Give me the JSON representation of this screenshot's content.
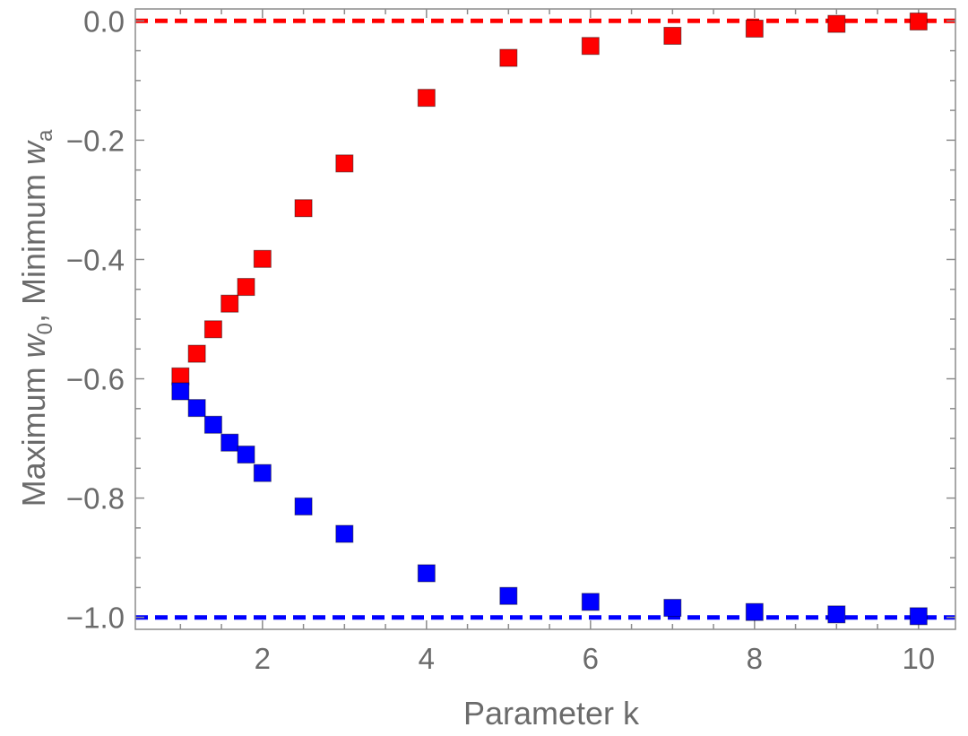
{
  "chart_data": {
    "type": "scatter",
    "title": "",
    "xlabel": "Parameter  k",
    "ylabel": {
      "prefix": "Maximum ",
      "w0_base": "w",
      "w0_sub": "0",
      "mid": ",  Minimum ",
      "wa_base": "w",
      "wa_sub": "a"
    },
    "xlim": [
      0.45,
      10.45
    ],
    "ylim": [
      -1.02,
      0.02
    ],
    "grid": false,
    "x_ticks": [
      2,
      4,
      6,
      8,
      10
    ],
    "x_tick_labels": [
      "2",
      "4",
      "6",
      "8",
      "10"
    ],
    "y_ticks": [
      0.0,
      -0.2,
      -0.4,
      -0.6,
      -0.8,
      -1.0
    ],
    "y_tick_labels": [
      "0.0",
      "−0.2",
      "−0.4",
      "−0.6",
      "−0.8",
      "−1.0"
    ],
    "series": [
      {
        "color": "#ff0000",
        "x": [
          1.0,
          1.2,
          1.4,
          1.6,
          1.8,
          2.0,
          2.5,
          3.0,
          4.0,
          5.0,
          6.0,
          7.0,
          8.0,
          9.0,
          10.0
        ],
        "y": [
          -0.596,
          -0.558,
          -0.517,
          -0.474,
          -0.446,
          -0.399,
          -0.314,
          -0.239,
          -0.129,
          -0.062,
          -0.042,
          -0.025,
          -0.013,
          -0.005,
          -0.001
        ]
      },
      {
        "color": "#0000ff",
        "x": [
          1.0,
          1.2,
          1.4,
          1.6,
          1.8,
          2.0,
          2.5,
          3.0,
          4.0,
          5.0,
          6.0,
          7.0,
          8.0,
          9.0,
          10.0
        ],
        "y": [
          -0.621,
          -0.649,
          -0.677,
          -0.707,
          -0.727,
          -0.758,
          -0.814,
          -0.86,
          -0.926,
          -0.964,
          -0.974,
          -0.984,
          -0.991,
          -0.995,
          -0.998
        ]
      }
    ],
    "reference_lines": [
      {
        "y": 0.0,
        "color": "#ff0000",
        "style": "dashed"
      },
      {
        "y": -1.0,
        "color": "#0000ff",
        "style": "dashed"
      }
    ]
  }
}
